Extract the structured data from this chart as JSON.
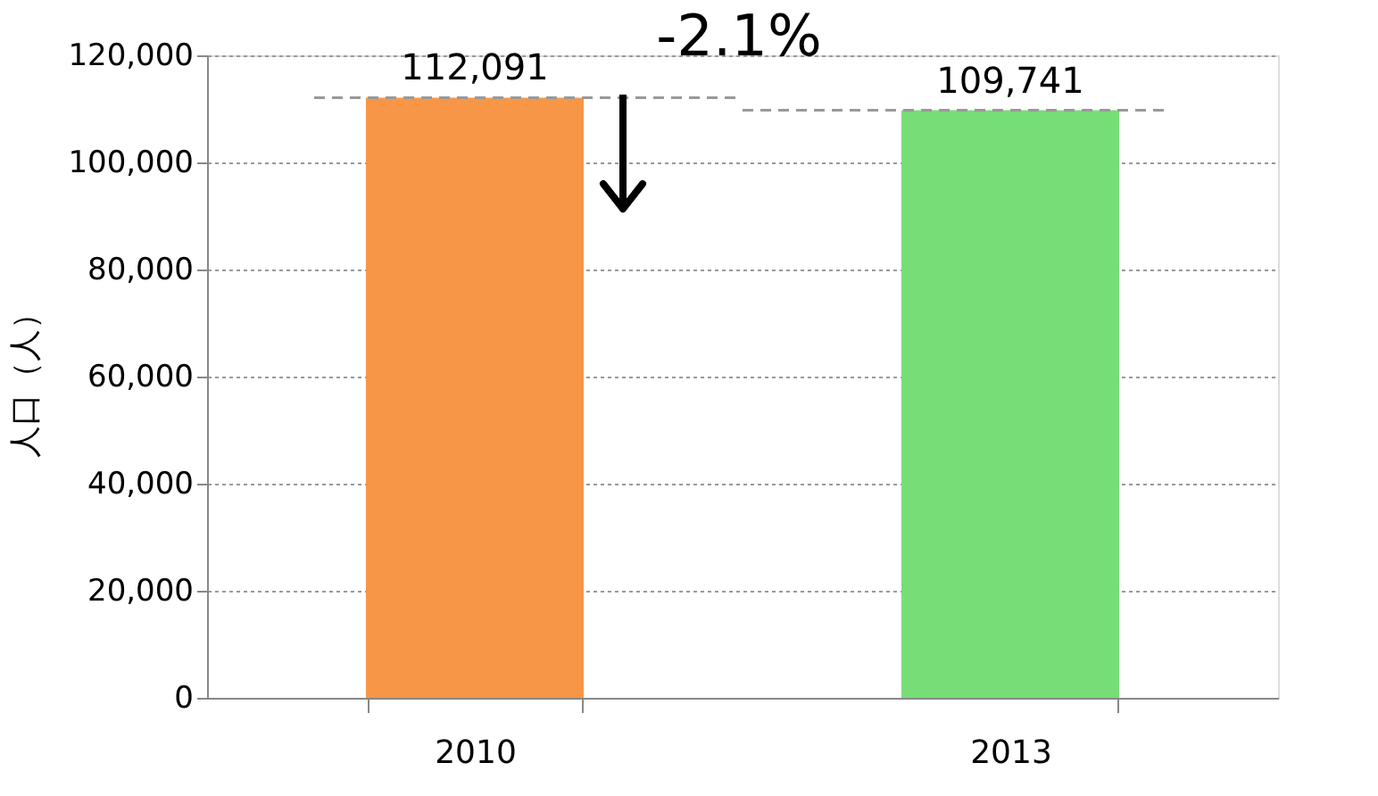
{
  "chart_data": {
    "type": "bar",
    "ylabel": "人口（人）",
    "categories": [
      "2010",
      "2013"
    ],
    "values": [
      112091,
      109741
    ],
    "colors": [
      "#f79646",
      "#77dd77"
    ],
    "ylim": [
      0,
      120000
    ],
    "yticks": [
      {
        "value": 0,
        "label": "0"
      },
      {
        "value": 20000,
        "label": "20,000"
      },
      {
        "value": 40000,
        "label": "40,000"
      },
      {
        "value": 60000,
        "label": "60,000"
      },
      {
        "value": 80000,
        "label": "80,000"
      },
      {
        "value": 100000,
        "label": "100,000"
      },
      {
        "value": 120000,
        "label": "120,000"
      }
    ],
    "grid": "y",
    "value_labels": [
      "112,091",
      "109,741"
    ],
    "ref_lines": [
      {
        "axis": "y",
        "value": 112091,
        "color": "#999999",
        "line_style": "dashed"
      },
      {
        "axis": "y",
        "value": 109741,
        "color": "#999999",
        "line_style": "dashed"
      }
    ],
    "annotations": [
      "-2.1%"
    ]
  }
}
